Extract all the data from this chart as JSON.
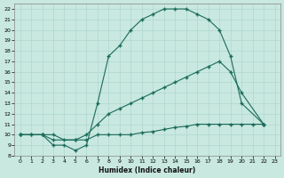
{
  "xlabel": "Humidex (Indice chaleur)",
  "bg_color": "#c8e8e0",
  "grid_color": "#aad4cc",
  "line_color": "#1a6b5a",
  "xlim": [
    -0.5,
    23.5
  ],
  "ylim": [
    8,
    22.5
  ],
  "xticks": [
    0,
    1,
    2,
    3,
    4,
    5,
    6,
    7,
    8,
    9,
    10,
    11,
    12,
    13,
    14,
    15,
    16,
    17,
    18,
    19,
    20,
    21,
    22,
    23
  ],
  "yticks": [
    8,
    9,
    10,
    11,
    12,
    13,
    14,
    15,
    16,
    17,
    18,
    19,
    20,
    21,
    22
  ],
  "curve_bell_x": [
    0,
    1,
    2,
    3,
    4,
    5,
    6,
    7,
    8,
    9,
    10,
    11,
    12,
    13,
    14,
    15,
    16,
    17,
    18,
    19,
    20,
    22
  ],
  "curve_bell_y": [
    10,
    10,
    10,
    9,
    9,
    8.5,
    9,
    13,
    17.5,
    18.5,
    20,
    21,
    21.5,
    22,
    22,
    22,
    21.5,
    21,
    20,
    17.5,
    13,
    11
  ],
  "curve_diag_x": [
    0,
    2,
    3,
    5,
    6,
    7,
    8,
    9,
    10,
    11,
    12,
    13,
    14,
    15,
    16,
    17,
    18,
    19,
    20,
    22
  ],
  "curve_diag_y": [
    10,
    10,
    9.5,
    9.5,
    10,
    11,
    12,
    12.5,
    13,
    13.5,
    14,
    14.5,
    15,
    15.5,
    16,
    16.5,
    17,
    16,
    14,
    11
  ],
  "curve_flat_x": [
    0,
    1,
    2,
    3,
    4,
    5,
    6,
    7,
    8,
    9,
    10,
    11,
    12,
    13,
    14,
    15,
    16,
    17,
    18,
    19,
    20,
    21,
    22
  ],
  "curve_flat_y": [
    10,
    10,
    10,
    10,
    9.5,
    9.5,
    9.5,
    10,
    10,
    10,
    10,
    10.2,
    10.3,
    10.5,
    10.7,
    10.8,
    11,
    11,
    11,
    11,
    11,
    11,
    11
  ]
}
